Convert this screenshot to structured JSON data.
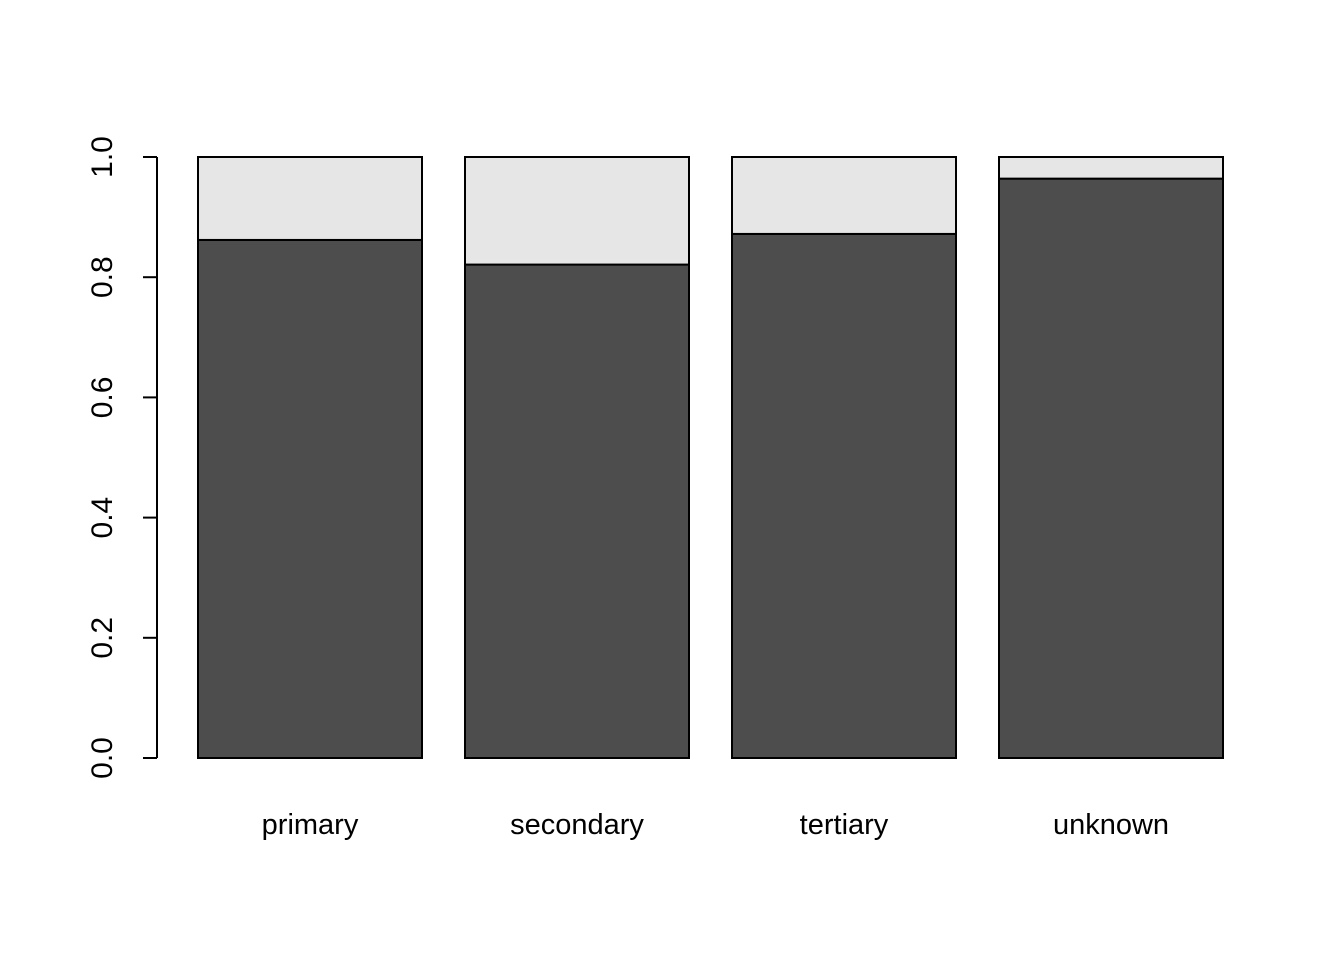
{
  "chart_data": {
    "type": "bar",
    "stacked": true,
    "categories": [
      "primary",
      "secondary",
      "tertiary",
      "unknown"
    ],
    "series": [
      {
        "values": [
          0.862,
          0.821,
          0.872,
          0.964
        ],
        "color": "#4d4d4d"
      },
      {
        "values": [
          0.138,
          0.179,
          0.128,
          0.036
        ],
        "color": "#e6e6e6"
      }
    ],
    "ylim": [
      0,
      1
    ],
    "yticks": [
      0,
      0.2,
      0.4,
      0.6,
      0.8,
      1
    ],
    "ytick_labels": [
      "0.0",
      "0.2",
      "0.4",
      "0.6",
      "0.8",
      "1.0"
    ],
    "title": "",
    "xlabel": "",
    "ylabel": "",
    "grid": false,
    "legend": "none"
  }
}
